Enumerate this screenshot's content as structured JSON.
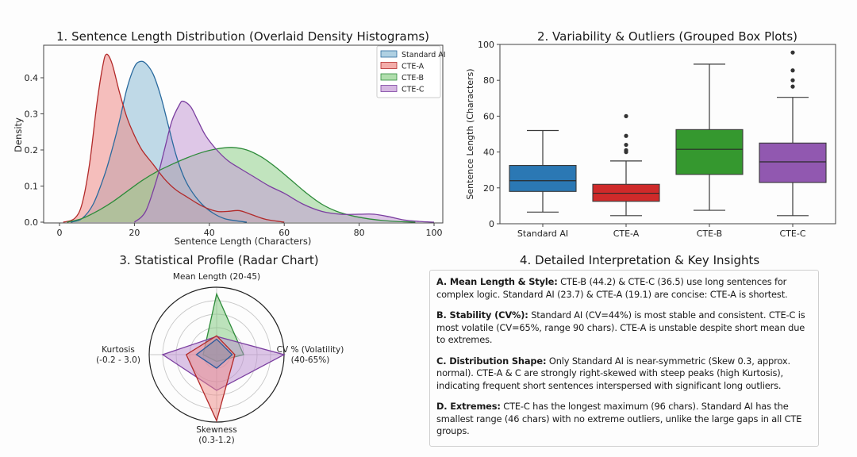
{
  "chart_data": [
    {
      "id": "density",
      "type": "area",
      "title": "1. Sentence Length Distribution (Overlaid Density Histograms)",
      "xlabel": "Sentence Length (Characters)",
      "ylabel": "Density",
      "xlim": [
        -7,
        102
      ],
      "ylim": [
        0,
        0.49
      ],
      "xticks": [
        0,
        20,
        40,
        60,
        80,
        100
      ],
      "yticks": [
        0.0,
        0.1,
        0.2,
        0.3,
        0.4
      ],
      "ytick_labels": [
        "0.0",
        "0.1",
        "0.2",
        "0.3",
        "0.4"
      ],
      "legend_position": "top-right",
      "series": [
        {
          "name": "Standard AI",
          "line": "#2a6a9e",
          "fill": "#8dbcd6",
          "x": [
            3,
            6,
            9,
            12,
            14,
            16,
            18,
            20,
            21.5,
            23,
            25,
            27,
            29,
            31,
            33,
            35,
            38,
            41,
            44,
            47,
            50
          ],
          "y": [
            0,
            0.01,
            0.05,
            0.13,
            0.2,
            0.28,
            0.37,
            0.43,
            0.445,
            0.44,
            0.41,
            0.35,
            0.27,
            0.19,
            0.13,
            0.09,
            0.05,
            0.025,
            0.01,
            0.004,
            0
          ]
        },
        {
          "name": "CTE-A",
          "line": "#b22a2a",
          "fill": "#ee8a86",
          "x": [
            1,
            4,
            6,
            8,
            10,
            11.5,
            12.5,
            14,
            16,
            18,
            20,
            22,
            25,
            28,
            31,
            34,
            38,
            42,
            45,
            48,
            51,
            55,
            60
          ],
          "y": [
            0,
            0.01,
            0.05,
            0.16,
            0.33,
            0.43,
            0.465,
            0.44,
            0.36,
            0.29,
            0.24,
            0.2,
            0.16,
            0.12,
            0.09,
            0.07,
            0.045,
            0.03,
            0.03,
            0.032,
            0.022,
            0.008,
            0
          ]
        },
        {
          "name": "CTE-B",
          "line": "#2e8b3a",
          "fill": "#8fd08a",
          "x": [
            2,
            6,
            10,
            14,
            18,
            22,
            26,
            30,
            34,
            38,
            42,
            46,
            50,
            54,
            58,
            62,
            66,
            70,
            74,
            78,
            82,
            86,
            90,
            95
          ],
          "y": [
            0,
            0.01,
            0.03,
            0.055,
            0.085,
            0.115,
            0.14,
            0.16,
            0.178,
            0.193,
            0.203,
            0.207,
            0.2,
            0.18,
            0.15,
            0.115,
            0.08,
            0.05,
            0.03,
            0.018,
            0.01,
            0.005,
            0.002,
            0
          ]
        },
        {
          "name": "CTE-C",
          "line": "#7b3fa0",
          "fill": "#c49ad6",
          "x": [
            20,
            23,
            26,
            28,
            30,
            32,
            33,
            35,
            37,
            39,
            42,
            45,
            48,
            52,
            56,
            60,
            65,
            70,
            75,
            80,
            84,
            88,
            92,
            96,
            100
          ],
          "y": [
            0,
            0.03,
            0.12,
            0.2,
            0.28,
            0.325,
            0.335,
            0.32,
            0.28,
            0.24,
            0.2,
            0.17,
            0.15,
            0.125,
            0.1,
            0.08,
            0.05,
            0.03,
            0.022,
            0.022,
            0.022,
            0.015,
            0.006,
            0.002,
            0
          ]
        }
      ]
    },
    {
      "id": "boxplot",
      "type": "box",
      "title": "2. Variability & Outliers (Grouped Box Plots)",
      "xlabel": "",
      "ylabel": "Sentence Length (Characters)",
      "ylim": [
        0,
        100
      ],
      "yticks": [
        0,
        20,
        40,
        60,
        80,
        100
      ],
      "categories": [
        "Standard AI",
        "CTE-A",
        "CTE-B",
        "CTE-C"
      ],
      "series": [
        {
          "name": "Standard AI",
          "color": "#2b78b4",
          "whisker_low": 6.5,
          "q1": 18,
          "median": 24,
          "q3": 32.5,
          "whisker_high": 52,
          "outliers": []
        },
        {
          "name": "CTE-A",
          "color": "#cf2a2a",
          "whisker_low": 4.5,
          "q1": 12.5,
          "median": 17,
          "q3": 22,
          "whisker_high": 35,
          "outliers": [
            40,
            41,
            44,
            49,
            60
          ]
        },
        {
          "name": "CTE-B",
          "color": "#35982f",
          "whisker_low": 7.5,
          "q1": 27.5,
          "median": 41.5,
          "q3": 52.5,
          "whisker_high": 89,
          "outliers": []
        },
        {
          "name": "CTE-C",
          "color": "#9158b0",
          "whisker_low": 4.5,
          "q1": 23,
          "median": 34.5,
          "q3": 45,
          "whisker_high": 70.5,
          "outliers": [
            76.5,
            80,
            85.5,
            95.5
          ]
        }
      ]
    },
    {
      "id": "radar",
      "type": "radar",
      "title": "3. Statistical Profile (Radar Chart)",
      "axes": [
        {
          "label": [
            "Mean Length (20-45)"
          ],
          "position": "top"
        },
        {
          "label": [
            "CV % (Volatility)",
            "(40-65%)"
          ],
          "position": "right"
        },
        {
          "label": [
            "Skewness",
            "(0.3-1.2)"
          ],
          "position": "bottom"
        },
        {
          "label": [
            "Kurtosis",
            "(-0.2 - 3.0)"
          ],
          "position": "left"
        }
      ],
      "rlim": [
        0,
        1
      ],
      "rings": [
        0.2,
        0.4,
        0.6,
        0.8
      ],
      "series": [
        {
          "name": "CTE-B",
          "line": "#2e8b3a",
          "fill": "#7cc87a",
          "values": [
            0.9,
            0.4,
            0.1,
            0.2
          ]
        },
        {
          "name": "CTE-C",
          "line": "#7b3fa0",
          "fill": "#b98bd0",
          "values": [
            0.27,
            1.0,
            0.53,
            0.8
          ]
        },
        {
          "name": "CTE-A",
          "line": "#b22a2a",
          "fill": "#ee8a86",
          "values": [
            0.28,
            0.27,
            0.98,
            0.45
          ]
        },
        {
          "name": "Standard AI",
          "line": "#2a5a9e",
          "fill": "#7f8fb0",
          "values": [
            0.23,
            0.23,
            0.2,
            0.3
          ]
        }
      ]
    }
  ],
  "insights": {
    "title": "4. Detailed Interpretation & Key Insights",
    "items": [
      {
        "heading": "A. Mean Length & Style:",
        "text": " CTE-B (44.2) & CTE-C (36.5) use long sentences for complex logic. Standard AI (23.7) & CTE-A (19.1) are concise: CTE-A is shortest."
      },
      {
        "heading": "B. Stability (CV%):",
        "text": " Standard AI (CV=44%) is most stable and consistent. CTE-C is most volatile (CV=65%, range 90 chars). CTE-A is unstable despite short mean due to extremes."
      },
      {
        "heading": "C. Distribution Shape:",
        "text": " Only Standard AI is near-symmetric (Skew 0.3, approx. normal). CTE-A & C are strongly right-skewed with steep peaks (high Kurtosis), indicating frequent short sentences interspersed with significant long outliers."
      },
      {
        "heading": "D. Extremes:",
        "text": " CTE-C has the longest maximum (96 chars). Standard AI has the smallest range (46 chars) with no extreme outliers, unlike the large gaps in all CTE groups."
      }
    ]
  }
}
